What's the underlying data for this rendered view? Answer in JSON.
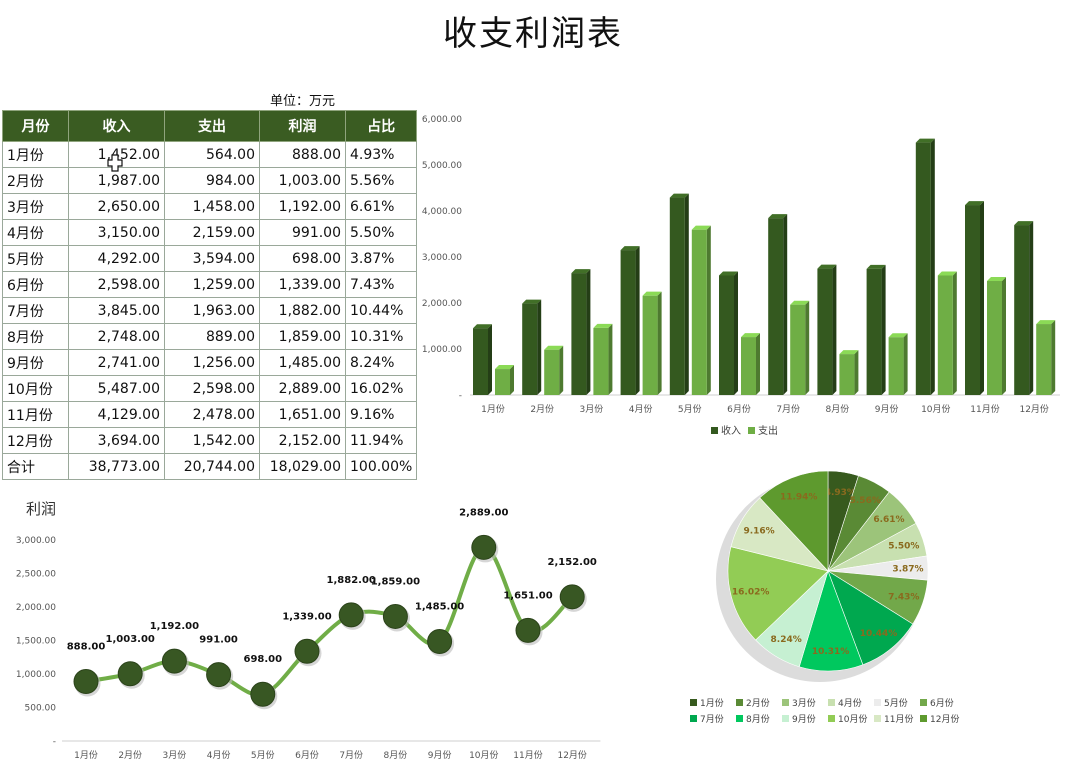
{
  "title": "收支利润表",
  "unit": "单位：万元",
  "table": {
    "headers": [
      "月份",
      "收入",
      "支出",
      "利润",
      "占比"
    ],
    "rows": [
      [
        "1月份",
        "1,452.00",
        "564.00",
        "888.00",
        "4.93%"
      ],
      [
        "2月份",
        "1,987.00",
        "984.00",
        "1,003.00",
        "5.56%"
      ],
      [
        "3月份",
        "2,650.00",
        "1,458.00",
        "1,192.00",
        "6.61%"
      ],
      [
        "4月份",
        "3,150.00",
        "2,159.00",
        "991.00",
        "5.50%"
      ],
      [
        "5月份",
        "4,292.00",
        "3,594.00",
        "698.00",
        "3.87%"
      ],
      [
        "6月份",
        "2,598.00",
        "1,259.00",
        "1,339.00",
        "7.43%"
      ],
      [
        "7月份",
        "3,845.00",
        "1,963.00",
        "1,882.00",
        "10.44%"
      ],
      [
        "8月份",
        "2,748.00",
        "889.00",
        "1,859.00",
        "10.31%"
      ],
      [
        "9月份",
        "2,741.00",
        "1,256.00",
        "1,485.00",
        "8.24%"
      ],
      [
        "10月份",
        "5,487.00",
        "2,598.00",
        "2,889.00",
        "16.02%"
      ],
      [
        "11月份",
        "4,129.00",
        "2,478.00",
        "1,651.00",
        "9.16%"
      ],
      [
        "12月份",
        "3,694.00",
        "1,542.00",
        "2,152.00",
        "11.94%"
      ],
      [
        "合计",
        "38,773.00",
        "20,744.00",
        "18,029.00",
        "100.00%"
      ]
    ]
  },
  "colors": {
    "header_bg": "#3a5c22",
    "income": "#34591f",
    "expense": "#6fae45",
    "line": "#70ad47",
    "marker": "#385723"
  },
  "chart_data": [
    {
      "type": "bar",
      "categories": [
        "1月份",
        "2月份",
        "3月份",
        "4月份",
        "5月份",
        "6月份",
        "7月份",
        "8月份",
        "9月份",
        "10月份",
        "11月份",
        "12月份"
      ],
      "series": [
        {
          "name": "收入",
          "values": [
            1452,
            1987,
            2650,
            3150,
            4292,
            2598,
            3845,
            2748,
            2741,
            5487,
            4129,
            3694
          ]
        },
        {
          "name": "支出",
          "values": [
            564,
            984,
            1458,
            2159,
            3594,
            1259,
            1963,
            889,
            1256,
            2598,
            2478,
            1542
          ]
        }
      ],
      "ylim": [
        0,
        6000
      ],
      "yticks": [
        "-",
        "1,000.00",
        "2,000.00",
        "3,000.00",
        "4,000.00",
        "5,000.00",
        "6,000.00"
      ],
      "legend": "bottom",
      "grid": false
    },
    {
      "type": "line",
      "title": "利润",
      "categories": [
        "1月份",
        "2月份",
        "3月份",
        "4月份",
        "5月份",
        "6月份",
        "7月份",
        "8月份",
        "9月份",
        "10月份",
        "11月份",
        "12月份"
      ],
      "values": [
        888,
        1003,
        1192,
        991,
        698,
        1339,
        1882,
        1859,
        1485,
        2889,
        1651,
        2152
      ],
      "data_labels": [
        "888.00",
        "1,003.00",
        "1,192.00",
        "991.00",
        "698.00",
        "1,339.00",
        "1,882.00",
        "1,859.00",
        "1,485.00",
        "2,889.00",
        "1,651.00",
        "2,152.00"
      ],
      "ylim": [
        0,
        3000
      ],
      "yticks": [
        "-",
        "500.00",
        "1,000.00",
        "1,500.00",
        "2,000.00",
        "2,500.00",
        "3,000.00"
      ],
      "grid": false
    },
    {
      "type": "pie",
      "categories": [
        "1月份",
        "2月份",
        "3月份",
        "4月份",
        "5月份",
        "6月份",
        "7月份",
        "8月份",
        "9月份",
        "10月份",
        "11月份",
        "12月份"
      ],
      "values": [
        4.93,
        5.56,
        6.61,
        5.5,
        3.87,
        7.43,
        10.44,
        10.31,
        8.24,
        16.02,
        9.16,
        11.94
      ],
      "labels": [
        "4.93%",
        "5.56%",
        "6.61%",
        "5.50%",
        "3.87%",
        "7.43%",
        "10.44%",
        "10.31%",
        "8.24%",
        "16.02%",
        "9.16%",
        "11.94%"
      ],
      "colors": [
        "#375a1e",
        "#5a8a35",
        "#9cc47a",
        "#c8e0b0",
        "#ececec",
        "#72a84a",
        "#00a84f",
        "#00c85e",
        "#c6f0d2",
        "#92cc55",
        "#d8e8c4",
        "#5e9a2e"
      ],
      "legend": "bottom"
    }
  ]
}
